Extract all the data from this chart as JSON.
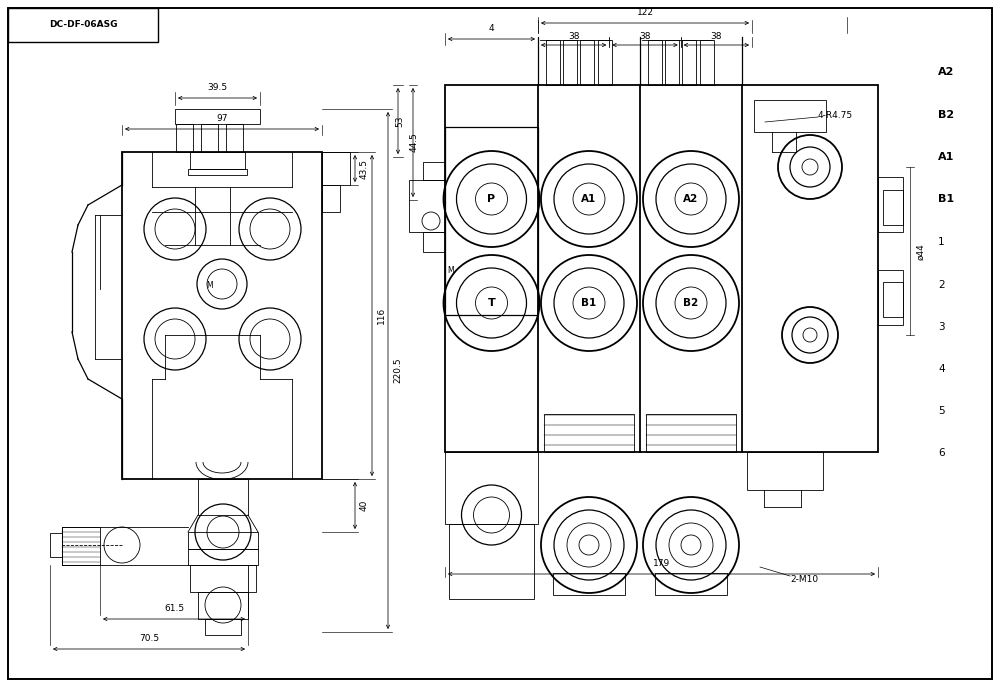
{
  "bg_color": "#ffffff",
  "line_color": "#000000",
  "fig_width": 10.0,
  "fig_height": 6.87,
  "title_text": "DC-DF-06ASG",
  "left_dims": {
    "d97": "97",
    "d39_5": "39.5",
    "d43_5": "43.5",
    "d116": "116",
    "d220_5": "220.5",
    "d40": "40",
    "d61_5": "61.5",
    "d70_5": "70.5"
  },
  "right_dims": {
    "d122": "122",
    "d38": "38",
    "d4": "4",
    "d53": "53",
    "d44_5": "44.5",
    "d179": "179",
    "d144": "ø44",
    "d2m10": "2-M10",
    "d4r475": "4-R4.75"
  },
  "right_labels_side": [
    [
      "A2",
      6.15
    ],
    [
      "B2",
      5.72
    ],
    [
      "A1",
      5.3
    ],
    [
      "B1",
      4.88
    ]
  ],
  "right_labels_nums": [
    [
      "1",
      4.45
    ],
    [
      "2",
      4.02
    ],
    [
      "3",
      3.6
    ],
    [
      "4",
      3.18
    ],
    [
      "5",
      2.76
    ],
    [
      "6",
      2.34
    ]
  ]
}
